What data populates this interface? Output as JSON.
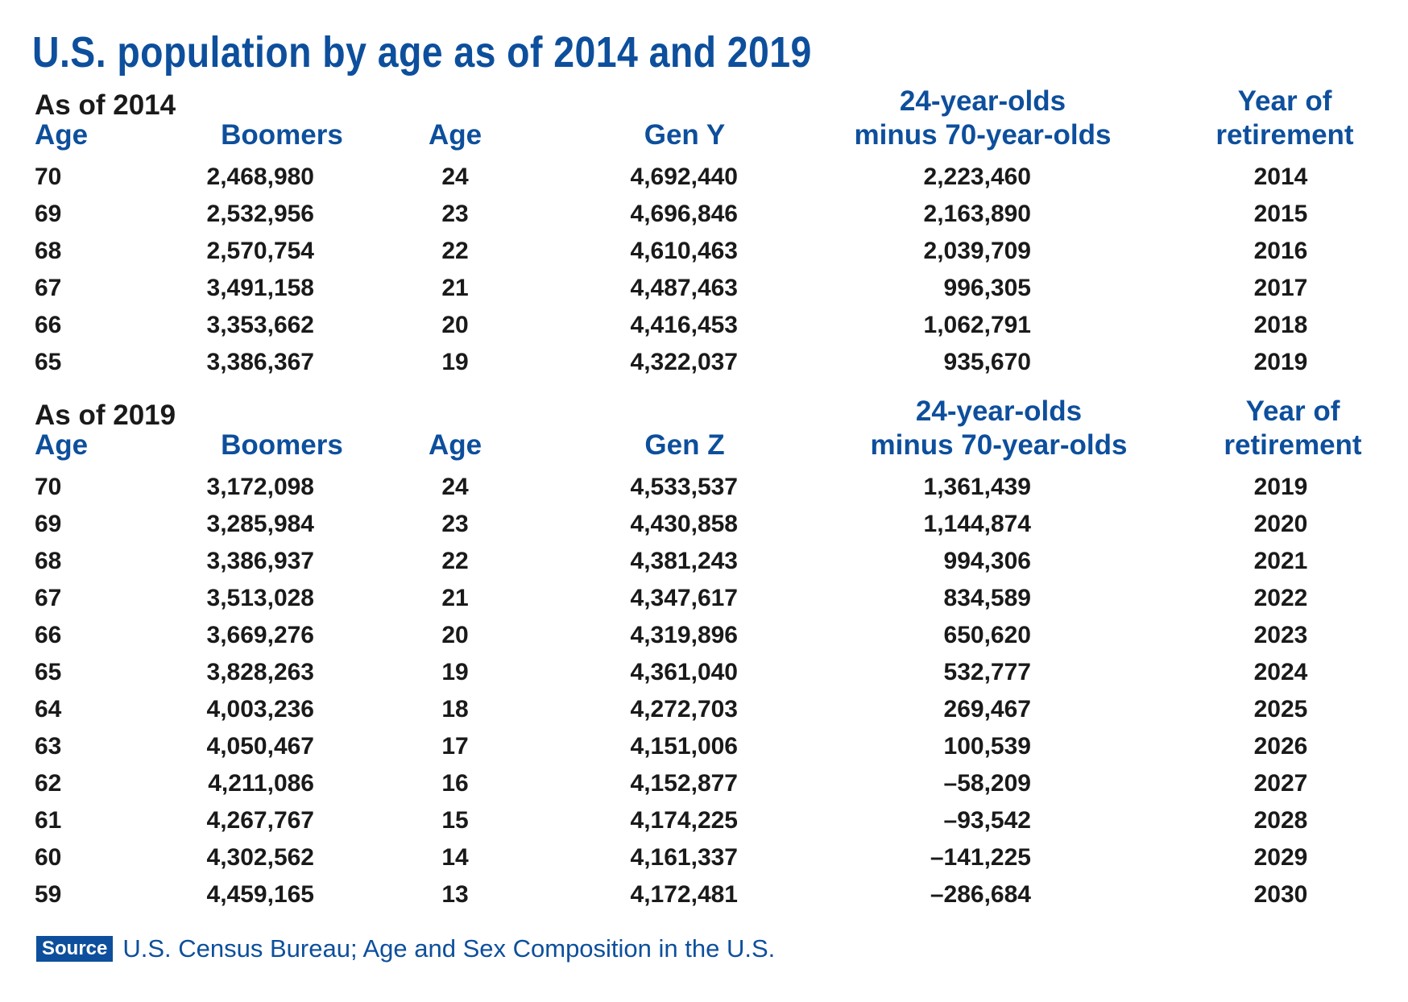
{
  "title": "U.S. population by age as of 2014 and 2019",
  "colors": {
    "accent": "#0d4f9c",
    "text": "#1a1a1a"
  },
  "chart_data": {
    "type": "table",
    "title": "U.S. population by age as of 2014 and 2019",
    "tables": [
      {
        "label": "As of 2014",
        "headers": [
          "Age",
          "Boomers",
          "Age",
          "Gen Y",
          "24-year-olds\nminus 70-year-olds",
          "Year of\nretirement"
        ],
        "header_lines": [
          [
            "Age"
          ],
          [
            "Boomers"
          ],
          [
            "Age"
          ],
          [
            "Gen Y"
          ],
          [
            "24-year-olds",
            "minus 70-year-olds"
          ],
          [
            "Year of",
            "retirement"
          ]
        ],
        "rows": [
          [
            "70",
            "2,468,980",
            "24",
            "4,692,440",
            "2,223,460",
            "2014"
          ],
          [
            "69",
            "2,532,956",
            "23",
            "4,696,846",
            "2,163,890",
            "2015"
          ],
          [
            "68",
            "2,570,754",
            "22",
            "4,610,463",
            "2,039,709",
            "2016"
          ],
          [
            "67",
            "3,491,158",
            "21",
            "4,487,463",
            "996,305",
            "2017"
          ],
          [
            "66",
            "3,353,662",
            "20",
            "4,416,453",
            "1,062,791",
            "2018"
          ],
          [
            "65",
            "3,386,367",
            "19",
            "4,322,037",
            "935,670",
            "2019"
          ]
        ]
      },
      {
        "label": "As of 2019",
        "headers": [
          "Age",
          "Boomers",
          "Age",
          "Gen Z",
          "24-year-olds\nminus 70-year-olds",
          "Year of\nretirement"
        ],
        "header_lines": [
          [
            "Age"
          ],
          [
            "Boomers"
          ],
          [
            "Age"
          ],
          [
            "Gen Z"
          ],
          [
            "24-year-olds",
            "minus 70-year-olds"
          ],
          [
            "Year of",
            "retirement"
          ]
        ],
        "rows": [
          [
            "70",
            "3,172,098",
            "24",
            "4,533,537",
            "1,361,439",
            "2019"
          ],
          [
            "69",
            "3,285,984",
            "23",
            "4,430,858",
            "1,144,874",
            "2020"
          ],
          [
            "68",
            "3,386,937",
            "22",
            "4,381,243",
            "994,306",
            "2021"
          ],
          [
            "67",
            "3,513,028",
            "21",
            "4,347,617",
            "834,589",
            "2022"
          ],
          [
            "66",
            "3,669,276",
            "20",
            "4,319,896",
            "650,620",
            "2023"
          ],
          [
            "65",
            "3,828,263",
            "19",
            "4,361,040",
            "532,777",
            "2024"
          ],
          [
            "64",
            "4,003,236",
            "18",
            "4,272,703",
            "269,467",
            "2025"
          ],
          [
            "63",
            "4,050,467",
            "17",
            "4,151,006",
            "100,539",
            "2026"
          ],
          [
            "62",
            "4,211,086",
            "16",
            "4,152,877",
            "–58,209",
            "2027"
          ],
          [
            "61",
            "4,267,767",
            "15",
            "4,174,225",
            "–93,542",
            "2028"
          ],
          [
            "60",
            "4,302,562",
            "14",
            "4,161,337",
            "–141,225",
            "2029"
          ],
          [
            "59",
            "4,459,165",
            "13",
            "4,172,481",
            "–286,684",
            "2030"
          ]
        ]
      }
    ]
  },
  "source": {
    "badge": "Source",
    "text": "U.S. Census Bureau; Age and Sex Composition in the U.S."
  }
}
